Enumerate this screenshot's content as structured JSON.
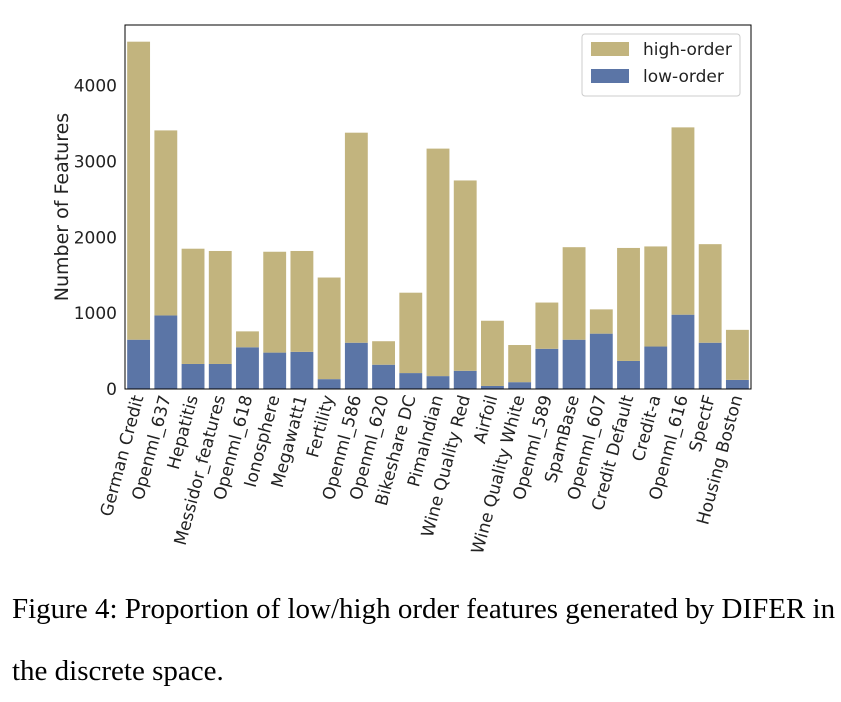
{
  "colors": {
    "high_order": "#C2B47E",
    "low_order": "#5B75A6",
    "axes": "#000000",
    "text": "#222222"
  },
  "chart_data": {
    "type": "bar",
    "stacked": true,
    "categories": [
      "German Credit",
      "Openml_637",
      "Hepatitis",
      "Messidor_features",
      "Openml_618",
      "Ionosphere",
      "Megawatt1",
      "Fertility",
      "Openml_586",
      "Openml_620",
      "Bikeshare DC",
      "PimaIndian",
      "Wine Quality Red",
      "Airfoil",
      "Wine Quality White",
      "Openml_589",
      "SpamBase",
      "Openml_607",
      "Credit Default",
      "Credit-a",
      "Openml_616",
      "SpectF",
      "Housing Boston"
    ],
    "series": [
      {
        "name": "low-order",
        "values": [
          650,
          970,
          330,
          330,
          550,
          480,
          490,
          130,
          610,
          320,
          210,
          170,
          240,
          40,
          90,
          530,
          650,
          730,
          370,
          560,
          980,
          610,
          120
        ]
      },
      {
        "name": "high-order",
        "values": [
          3930,
          2440,
          1520,
          1490,
          210,
          1330,
          1330,
          1340,
          2770,
          310,
          1060,
          3000,
          2510,
          860,
          490,
          610,
          1220,
          320,
          1490,
          1320,
          2470,
          1300,
          660
        ]
      }
    ],
    "xlabel": "",
    "ylabel": "Number of Features",
    "ylim": [
      0,
      4800
    ],
    "yticks": [
      0,
      1000,
      2000,
      3000,
      4000
    ],
    "grid": false,
    "legend": {
      "placement": "top-right",
      "entries": [
        "high-order",
        "low-order"
      ]
    }
  },
  "caption": {
    "text": "Figure 4: Proportion of low/high order features generated by DIFER in the discrete space."
  }
}
